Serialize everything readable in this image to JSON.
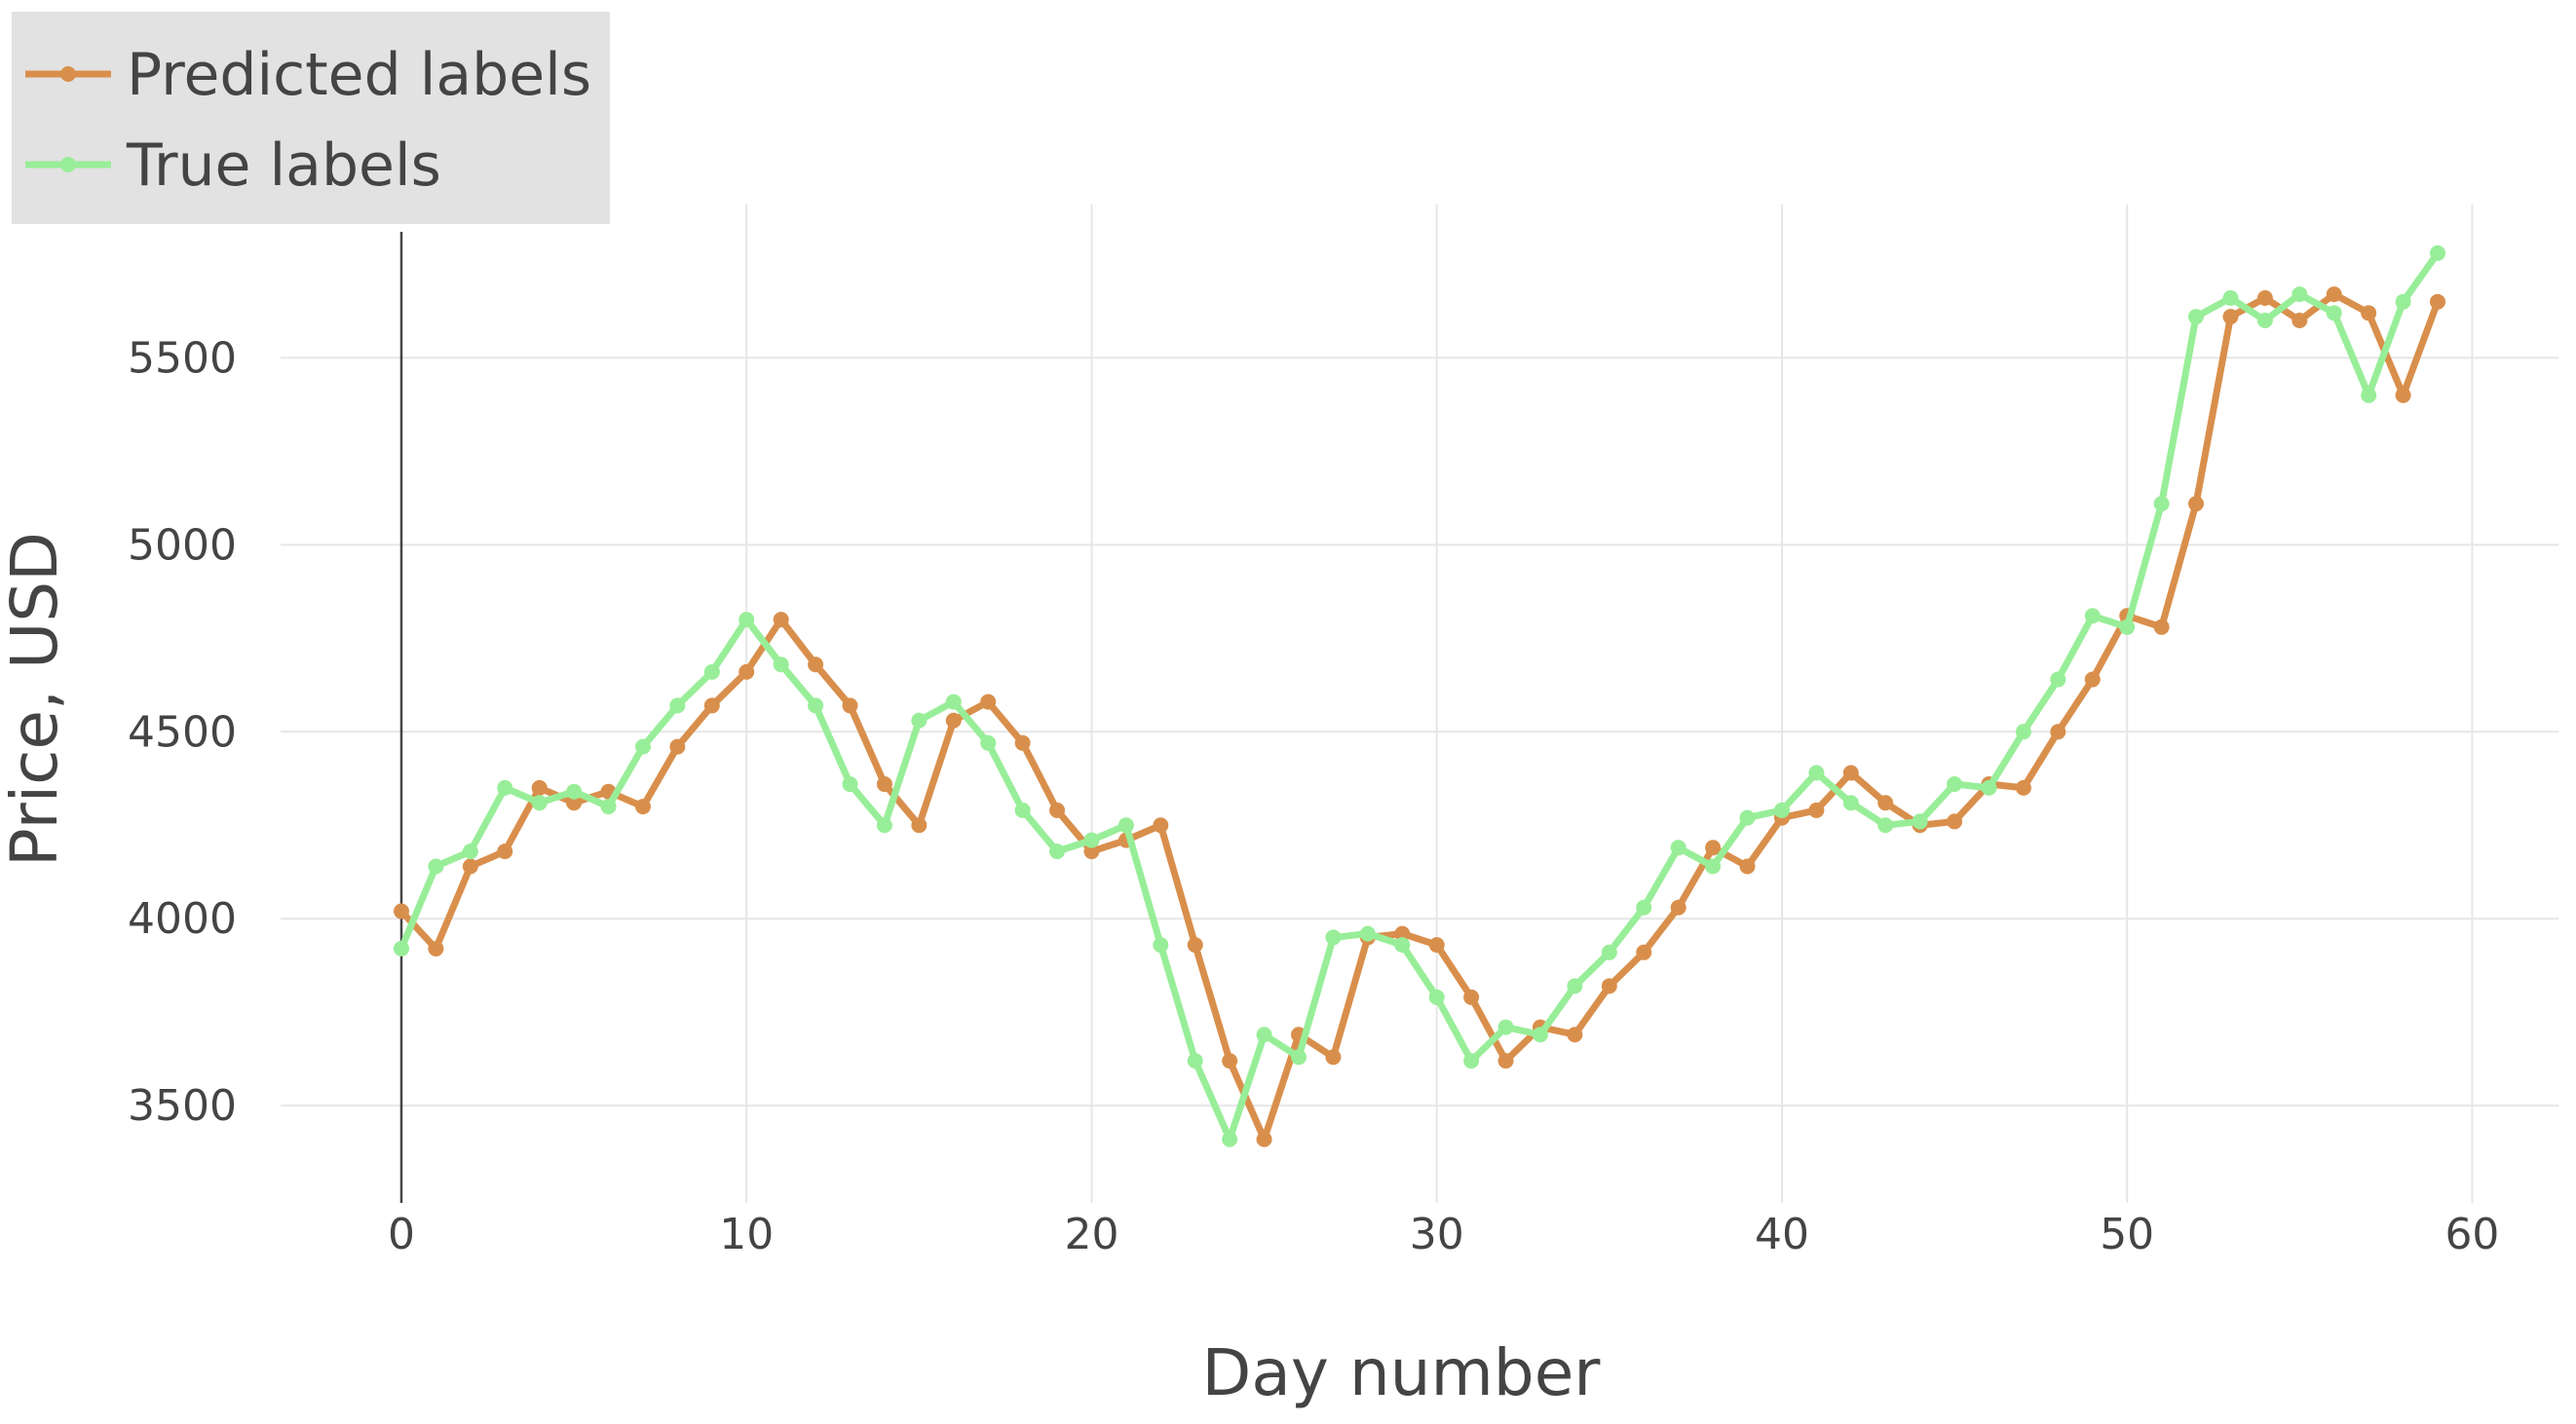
{
  "chart_data": {
    "type": "line",
    "xlabel": "Day number",
    "ylabel": "Price, USD",
    "xlim": [
      -3.5,
      62.5
    ],
    "ylim": [
      3240,
      5910
    ],
    "x_ticks": [
      0,
      10,
      20,
      30,
      40,
      50,
      60
    ],
    "y_ticks": [
      3500,
      4000,
      4500,
      5000,
      5500
    ],
    "grid": true,
    "legend_position": "top-left",
    "x": [
      0,
      1,
      2,
      3,
      4,
      5,
      6,
      7,
      8,
      9,
      10,
      11,
      12,
      13,
      14,
      15,
      16,
      17,
      18,
      19,
      20,
      21,
      22,
      23,
      24,
      25,
      26,
      27,
      28,
      29,
      30,
      31,
      32,
      33,
      34,
      35,
      36,
      37,
      38,
      39,
      40,
      41,
      42,
      43,
      44,
      45,
      46,
      47,
      48,
      49,
      50,
      51,
      52,
      53,
      54,
      55,
      56,
      57,
      58,
      59
    ],
    "series": [
      {
        "name": "Predicted labels",
        "color": "#d98f4c",
        "values": [
          4020,
          3920,
          4140,
          4180,
          4350,
          4310,
          4340,
          4300,
          4460,
          4570,
          4660,
          4800,
          4680,
          4570,
          4360,
          4250,
          4530,
          4580,
          4470,
          4290,
          4180,
          4210,
          4250,
          3930,
          3620,
          3410,
          3690,
          3630,
          3950,
          3960,
          3930,
          3790,
          3620,
          3710,
          3690,
          3820,
          3910,
          4030,
          4190,
          4140,
          4270,
          4290,
          4390,
          4310,
          4250,
          4260,
          4360,
          4350,
          4500,
          4640,
          4810,
          4780,
          5110,
          5610,
          5660,
          5600,
          5670,
          5620,
          5400,
          5650
        ]
      },
      {
        "name": "True labels",
        "color": "#98ee98",
        "values": [
          3920,
          4140,
          4180,
          4350,
          4310,
          4340,
          4300,
          4460,
          4570,
          4660,
          4800,
          4680,
          4570,
          4360,
          4250,
          4530,
          4580,
          4470,
          4290,
          4180,
          4210,
          4250,
          3930,
          3620,
          3410,
          3690,
          3630,
          3950,
          3960,
          3930,
          3790,
          3620,
          3710,
          3690,
          3820,
          3910,
          4030,
          4190,
          4140,
          4270,
          4290,
          4390,
          4310,
          4250,
          4260,
          4360,
          4350,
          4500,
          4640,
          4810,
          4780,
          5110,
          5610,
          5660,
          5600,
          5670,
          5620,
          5400,
          5650,
          5780
        ]
      }
    ]
  }
}
